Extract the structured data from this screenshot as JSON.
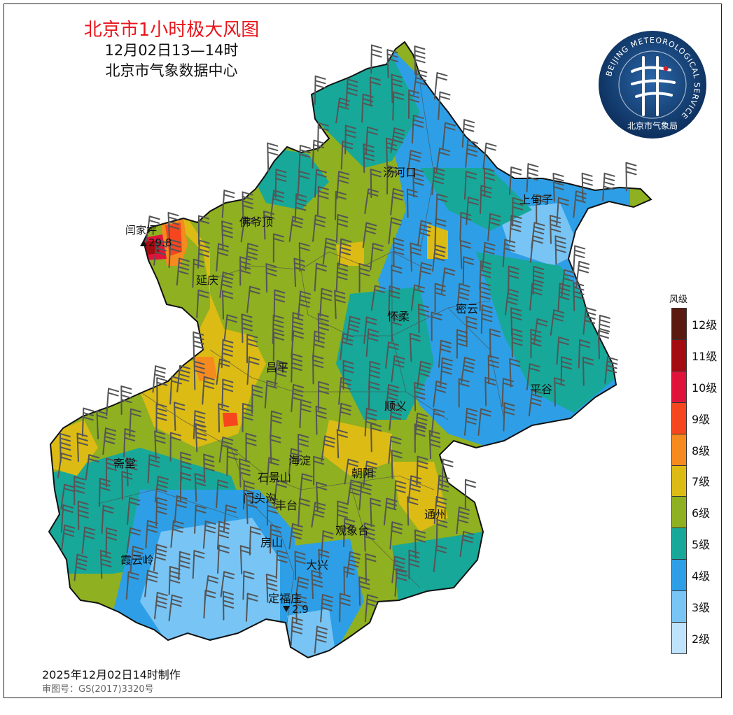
{
  "title": {
    "main": "北京市1小时极大风图",
    "time": "12月02日13—14时",
    "org": "北京市气象数据中心"
  },
  "logo": {
    "ring_text": "BEIJING METEOROLOGICAL SERVICE",
    "cn_text": "北京市气象局",
    "colors": {
      "outer": "#0c2f5e",
      "inner": "#1d4f8a",
      "text": "#ffffff",
      "accent": "#d81e2a"
    }
  },
  "places": [
    {
      "id": "tanghekou",
      "name": "汤河口"
    },
    {
      "id": "shangdianzi",
      "name": "上甸子"
    },
    {
      "id": "foyeding",
      "name": "佛爷顶"
    },
    {
      "id": "yanqing",
      "name": "延庆"
    },
    {
      "id": "huairou",
      "name": "怀柔"
    },
    {
      "id": "miyun",
      "name": "密云"
    },
    {
      "id": "changping",
      "name": "昌平"
    },
    {
      "id": "pinggu",
      "name": "平谷"
    },
    {
      "id": "shunyi",
      "name": "顺义"
    },
    {
      "id": "zhaitang",
      "name": "斋堂"
    },
    {
      "id": "haidian",
      "name": "海淀"
    },
    {
      "id": "chaoyang",
      "name": "朝阳"
    },
    {
      "id": "shijingshan",
      "name": "石景山"
    },
    {
      "id": "mentougou",
      "name": "门头沟"
    },
    {
      "id": "fengtai",
      "name": "丰台"
    },
    {
      "id": "tongzhou",
      "name": "通州"
    },
    {
      "id": "guanxiangtai",
      "name": "观象台"
    },
    {
      "id": "fangshan",
      "name": "房山"
    },
    {
      "id": "daxing",
      "name": "大兴"
    },
    {
      "id": "xiayunling",
      "name": "霞云岭"
    },
    {
      "id": "dingfuzhuang",
      "name": "定福庄"
    }
  ],
  "extremes": [
    {
      "id": "max",
      "station": "闫家坪",
      "marker": "▲",
      "value": "29.8"
    },
    {
      "id": "min",
      "station": "定福庄",
      "marker": "▼",
      "value": "2.9"
    }
  ],
  "legend": {
    "title": "风级",
    "levels": [
      {
        "label": "12级",
        "color": "#5a1a10"
      },
      {
        "label": "11级",
        "color": "#a30c10"
      },
      {
        "label": "10级",
        "color": "#e0143a"
      },
      {
        "label": "9级",
        "color": "#f5461e"
      },
      {
        "label": "8级",
        "color": "#f58a1e"
      },
      {
        "label": "7级",
        "color": "#dcbb14"
      },
      {
        "label": "6级",
        "color": "#8fb020"
      },
      {
        "label": "5级",
        "color": "#17a89a"
      },
      {
        "label": "4级",
        "color": "#2e9fe6"
      },
      {
        "label": "3级",
        "color": "#78c4f5"
      },
      {
        "label": "2级",
        "color": "#bfe3fb"
      }
    ]
  },
  "footer": {
    "produced": "2025年12月02日14时制作",
    "review": "审图号：GS(2017)3320号"
  }
}
